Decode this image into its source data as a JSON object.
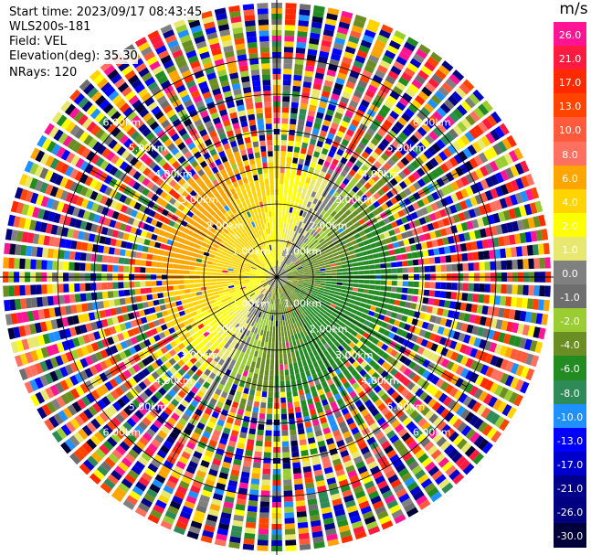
{
  "header": {
    "start_time": "Start time: 2023/09/17 08:43:45",
    "instrument": "WLS200s-181",
    "field": "Field: VEL",
    "elevation": "Elevation(deg): 35.30",
    "nrays": "NRays: 120"
  },
  "colorbar": {
    "unit": "m/s",
    "bins": [
      {
        "label": "26.0",
        "color": "#ff1493"
      },
      {
        "label": "21.0",
        "color": "#ff1a40"
      },
      {
        "label": "17.0",
        "color": "#ff2a00"
      },
      {
        "label": "13.0",
        "color": "#ff4400"
      },
      {
        "label": "10.0",
        "color": "#ff5a3c"
      },
      {
        "label": "8.0",
        "color": "#ff7060"
      },
      {
        "label": "6.0",
        "color": "#ffa500"
      },
      {
        "label": "4.0",
        "color": "#ffd400"
      },
      {
        "label": "2.0",
        "color": "#ffff00"
      },
      {
        "label": "1.0",
        "color": "#e8e870"
      },
      {
        "label": "0.0",
        "color": "#808080"
      },
      {
        "label": "-1.0",
        "color": "#6e6e6e"
      },
      {
        "label": "-2.0",
        "color": "#9acd32"
      },
      {
        "label": "-4.0",
        "color": "#6b8e23"
      },
      {
        "label": "-6.0",
        "color": "#228b22"
      },
      {
        "label": "-8.0",
        "color": "#2e8b57"
      },
      {
        "label": "-10.0",
        "color": "#1e90ff"
      },
      {
        "label": "-13.0",
        "color": "#0000ff"
      },
      {
        "label": "-17.0",
        "color": "#0000cd"
      },
      {
        "label": "-21.0",
        "color": "#00008b"
      },
      {
        "label": "-26.0",
        "color": "#000080"
      },
      {
        "label": "-30.0",
        "color": "#00003a"
      }
    ]
  },
  "range_rings": {
    "labels": [
      "1.00km",
      "2.00km",
      "3.00km",
      "4.00km",
      "5.00km",
      "6.00km"
    ]
  }
}
